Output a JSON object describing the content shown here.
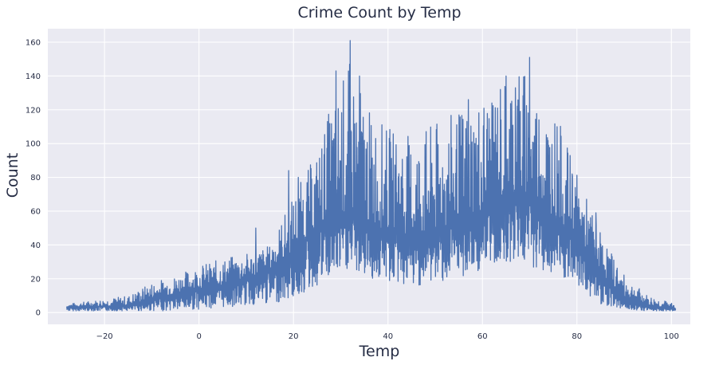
{
  "chart_data": {
    "type": "line",
    "title": "Crime Count by Temp",
    "xlabel": "Temp",
    "ylabel": "Count",
    "xlim": [
      -32,
      104
    ],
    "ylim": [
      -7,
      168
    ],
    "x_ticks": [
      -20,
      0,
      20,
      40,
      60,
      80,
      100
    ],
    "y_ticks": [
      0,
      20,
      40,
      60,
      80,
      100,
      120,
      140,
      160
    ],
    "x_tick_labels": [
      "−20",
      "0",
      "20",
      "40",
      "60",
      "80",
      "100"
    ],
    "y_tick_labels": [
      "0",
      "20",
      "40",
      "60",
      "80",
      "100",
      "120",
      "140",
      "160"
    ],
    "grid": true,
    "legend": "none",
    "colors": {
      "background": "#eaeaf2",
      "grid": "#ffffff",
      "line": "#4c72b0",
      "text": "#262d45"
    },
    "series": [
      {
        "x_start": -28,
        "x_end": 101,
        "envelope": {
          "temp": [
            -28,
            -15,
            -10,
            -5,
            0,
            5,
            10,
            15,
            20,
            25,
            28,
            32,
            36,
            40,
            45,
            50,
            55,
            60,
            64,
            68,
            72,
            76,
            80,
            85,
            90,
            95,
            101
          ],
          "low": [
            1,
            1,
            1,
            1,
            2,
            3,
            4,
            5,
            8,
            15,
            20,
            25,
            20,
            18,
            15,
            18,
            20,
            25,
            30,
            30,
            25,
            20,
            15,
            5,
            2,
            1,
            1
          ],
          "high": [
            5,
            10,
            18,
            22,
            28,
            32,
            35,
            40,
            70,
            95,
            125,
            150,
            120,
            110,
            105,
            112,
            120,
            130,
            140,
            150,
            130,
            115,
            82,
            48,
            22,
            10,
            5
          ],
          "baseline": [
            3,
            4,
            8,
            11,
            14,
            16,
            20,
            24,
            36,
            50,
            56,
            58,
            53,
            48,
            44,
            48,
            52,
            58,
            66,
            68,
            62,
            52,
            42,
            22,
            9,
            4,
            2
          ]
        },
        "peaks": [
          {
            "x": 32,
            "y": 161
          },
          {
            "x": 70,
            "y": 151
          },
          {
            "x": 29,
            "y": 143
          },
          {
            "x": 34,
            "y": 140
          },
          {
            "x": 65,
            "y": 140
          },
          {
            "x": 57,
            "y": 126
          },
          {
            "x": 62,
            "y": 124
          },
          {
            "x": 67,
            "y": 133
          },
          {
            "x": 19,
            "y": 84
          },
          {
            "x": 21,
            "y": 80
          },
          {
            "x": 12,
            "y": 50
          },
          {
            "x": 79,
            "y": 82
          },
          {
            "x": 76,
            "y": 82
          },
          {
            "x": 84,
            "y": 59
          }
        ]
      }
    ]
  }
}
